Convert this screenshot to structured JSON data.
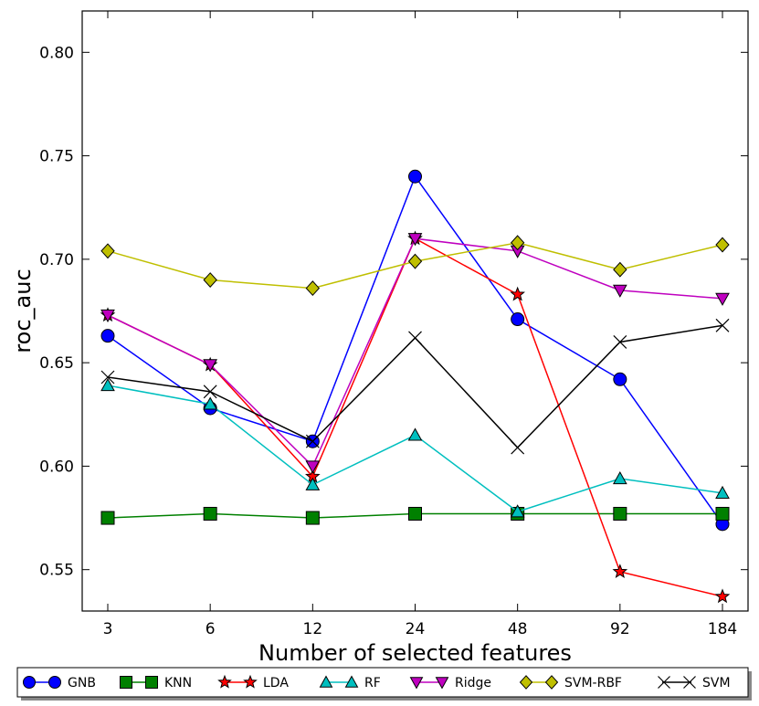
{
  "chart_data": {
    "type": "line",
    "title": "",
    "xlabel": "Number of selected features",
    "ylabel": "roc_auc",
    "categories": [
      "3",
      "6",
      "12",
      "24",
      "48",
      "92",
      "184"
    ],
    "ylim": [
      0.53,
      0.82
    ],
    "yticks": [
      0.55,
      0.6,
      0.65,
      0.7,
      0.75,
      0.8
    ],
    "ytick_labels": [
      "0.55",
      "0.60",
      "0.65",
      "0.70",
      "0.75",
      "0.80"
    ],
    "grid": false,
    "legend_position": "bottom-outside",
    "series": [
      {
        "name": "GNB",
        "color": "#0000ff",
        "marker": "circle",
        "values": [
          0.663,
          0.628,
          0.612,
          0.74,
          0.671,
          0.642,
          0.572
        ]
      },
      {
        "name": "KNN",
        "color": "#008000",
        "marker": "square",
        "values": [
          0.575,
          0.577,
          0.575,
          0.577,
          0.577,
          0.577,
          0.577
        ]
      },
      {
        "name": "LDA",
        "color": "#ff0000",
        "marker": "star",
        "values": [
          0.673,
          0.649,
          0.595,
          0.71,
          0.683,
          0.549,
          0.537
        ]
      },
      {
        "name": "RF",
        "color": "#00bfbf",
        "marker": "triangle-up",
        "values": [
          0.639,
          0.63,
          0.591,
          0.615,
          0.578,
          0.594,
          0.587
        ]
      },
      {
        "name": "Ridge",
        "color": "#bf00bf",
        "marker": "triangle-down",
        "values": [
          0.673,
          0.649,
          0.6,
          0.71,
          0.704,
          0.685,
          0.681
        ]
      },
      {
        "name": "SVM-RBF",
        "color": "#bfbf00",
        "marker": "diamond",
        "values": [
          0.704,
          0.69,
          0.686,
          0.699,
          0.708,
          0.695,
          0.707
        ]
      },
      {
        "name": "SVM",
        "color": "#000000",
        "marker": "x",
        "values": [
          0.643,
          0.636,
          0.612,
          0.662,
          0.609,
          0.66,
          0.668
        ]
      }
    ]
  }
}
